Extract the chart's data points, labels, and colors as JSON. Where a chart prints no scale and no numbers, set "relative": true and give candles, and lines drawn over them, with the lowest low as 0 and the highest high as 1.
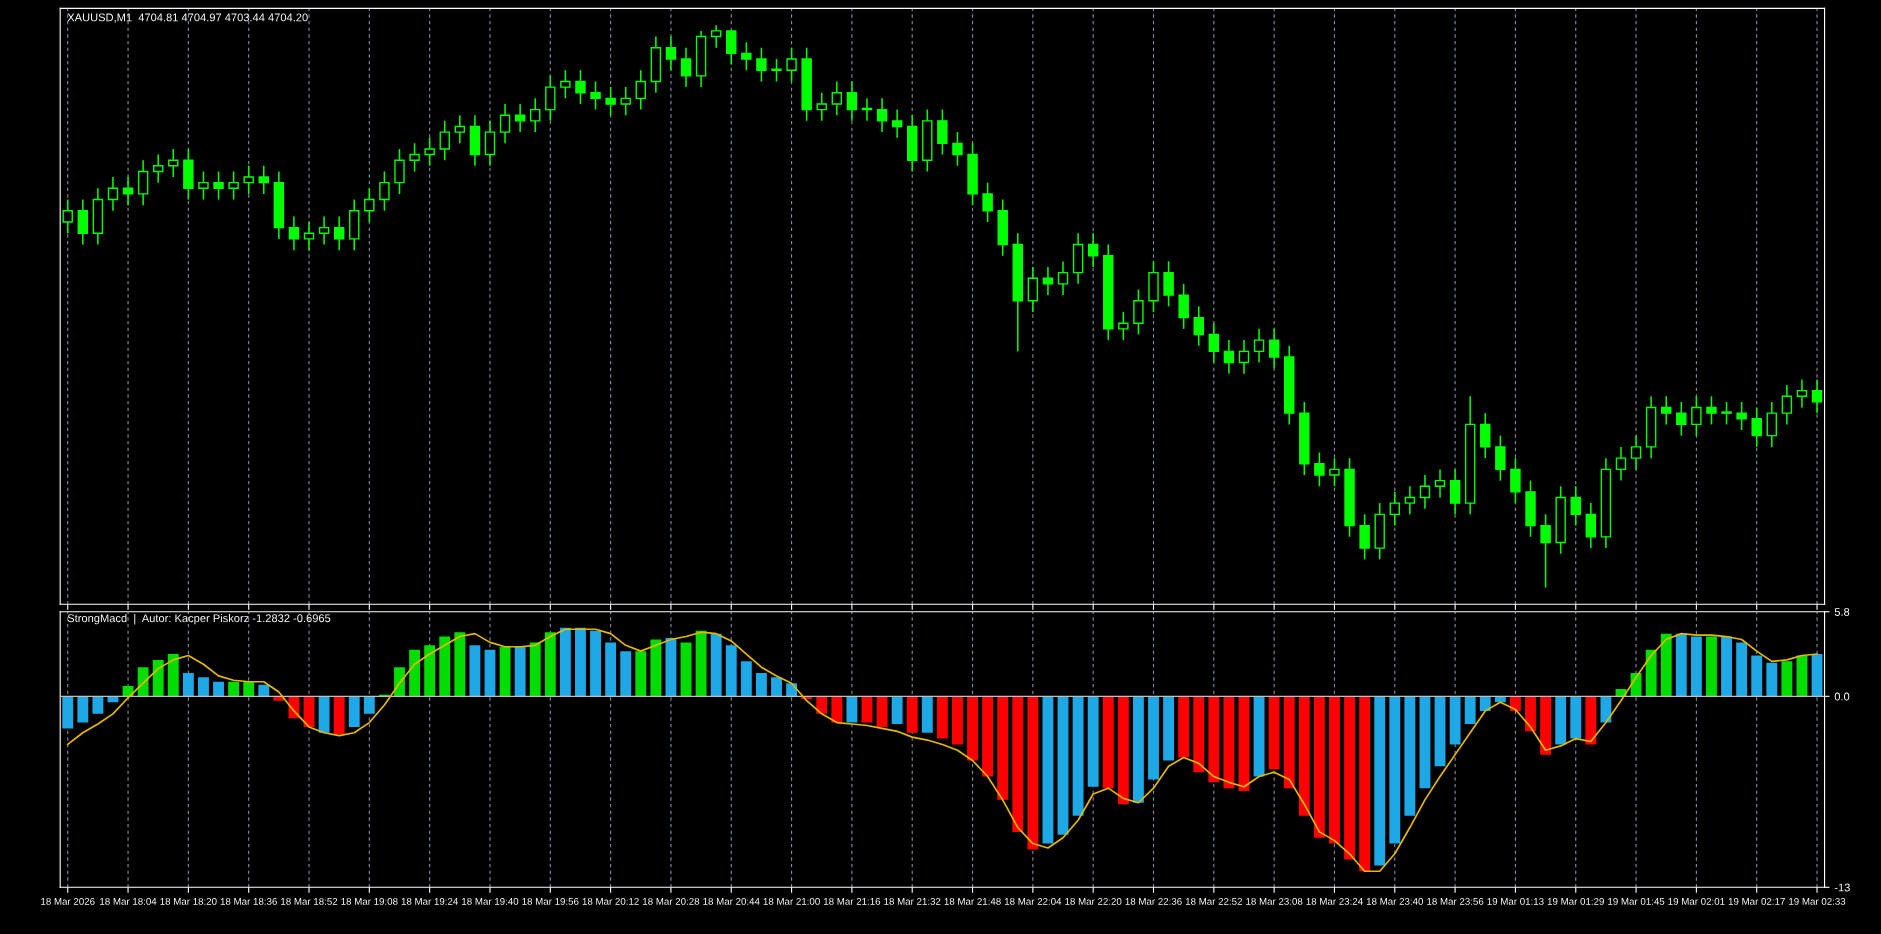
{
  "chart_data": [
    {
      "type": "candlestick",
      "title": "XAUUSD,M1  4704.81 4704.97 4703.44 4704.20",
      "relative": true,
      "color": "#00ff00",
      "grid": "x",
      "tick_labels": false,
      "ohlc": [
        [
          0.65,
          0.69,
          0.63,
          0.67
        ],
        [
          0.67,
          0.69,
          0.61,
          0.63
        ],
        [
          0.63,
          0.71,
          0.61,
          0.69
        ],
        [
          0.69,
          0.73,
          0.67,
          0.71
        ],
        [
          0.71,
          0.73,
          0.68,
          0.7
        ],
        [
          0.7,
          0.76,
          0.68,
          0.74
        ],
        [
          0.74,
          0.77,
          0.72,
          0.75
        ],
        [
          0.75,
          0.78,
          0.73,
          0.76
        ],
        [
          0.76,
          0.78,
          0.69,
          0.71
        ],
        [
          0.71,
          0.74,
          0.69,
          0.72
        ],
        [
          0.72,
          0.74,
          0.69,
          0.71
        ],
        [
          0.71,
          0.74,
          0.69,
          0.72
        ],
        [
          0.72,
          0.75,
          0.7,
          0.73
        ],
        [
          0.73,
          0.75,
          0.7,
          0.72
        ],
        [
          0.72,
          0.74,
          0.62,
          0.64
        ],
        [
          0.64,
          0.66,
          0.6,
          0.62
        ],
        [
          0.62,
          0.65,
          0.6,
          0.63
        ],
        [
          0.63,
          0.66,
          0.61,
          0.64
        ],
        [
          0.64,
          0.66,
          0.6,
          0.62
        ],
        [
          0.62,
          0.69,
          0.6,
          0.67
        ],
        [
          0.67,
          0.71,
          0.65,
          0.69
        ],
        [
          0.69,
          0.74,
          0.67,
          0.72
        ],
        [
          0.72,
          0.78,
          0.7,
          0.76
        ],
        [
          0.76,
          0.79,
          0.74,
          0.77
        ],
        [
          0.77,
          0.8,
          0.75,
          0.78
        ],
        [
          0.78,
          0.83,
          0.76,
          0.81
        ],
        [
          0.81,
          0.84,
          0.79,
          0.82
        ],
        [
          0.82,
          0.84,
          0.75,
          0.77
        ],
        [
          0.77,
          0.83,
          0.75,
          0.81
        ],
        [
          0.81,
          0.86,
          0.79,
          0.84
        ],
        [
          0.84,
          0.86,
          0.81,
          0.83
        ],
        [
          0.83,
          0.87,
          0.81,
          0.85
        ],
        [
          0.85,
          0.91,
          0.83,
          0.89
        ],
        [
          0.89,
          0.92,
          0.87,
          0.9
        ],
        [
          0.9,
          0.92,
          0.86,
          0.88
        ],
        [
          0.88,
          0.9,
          0.85,
          0.87
        ],
        [
          0.87,
          0.89,
          0.84,
          0.86
        ],
        [
          0.86,
          0.89,
          0.84,
          0.87
        ],
        [
          0.87,
          0.92,
          0.85,
          0.9
        ],
        [
          0.9,
          0.98,
          0.88,
          0.96
        ],
        [
          0.96,
          0.98,
          0.92,
          0.94
        ],
        [
          0.94,
          0.96,
          0.89,
          0.91
        ],
        [
          0.91,
          0.99,
          0.89,
          0.98
        ],
        [
          0.98,
          1.0,
          0.96,
          0.99
        ],
        [
          0.99,
          0.99,
          0.93,
          0.95
        ],
        [
          0.95,
          0.97,
          0.92,
          0.94
        ],
        [
          0.94,
          0.96,
          0.9,
          0.92
        ],
        [
          0.92,
          0.94,
          0.9,
          0.92
        ],
        [
          0.92,
          0.96,
          0.9,
          0.94
        ],
        [
          0.94,
          0.96,
          0.83,
          0.85
        ],
        [
          0.85,
          0.88,
          0.83,
          0.86
        ],
        [
          0.86,
          0.9,
          0.84,
          0.88
        ],
        [
          0.88,
          0.9,
          0.83,
          0.85
        ],
        [
          0.85,
          0.87,
          0.83,
          0.85
        ],
        [
          0.85,
          0.87,
          0.81,
          0.83
        ],
        [
          0.83,
          0.85,
          0.8,
          0.82
        ],
        [
          0.82,
          0.84,
          0.74,
          0.76
        ],
        [
          0.76,
          0.85,
          0.74,
          0.83
        ],
        [
          0.83,
          0.85,
          0.77,
          0.79
        ],
        [
          0.79,
          0.81,
          0.75,
          0.77
        ],
        [
          0.77,
          0.79,
          0.68,
          0.7
        ],
        [
          0.7,
          0.72,
          0.65,
          0.67
        ],
        [
          0.67,
          0.69,
          0.59,
          0.61
        ],
        [
          0.61,
          0.63,
          0.42,
          0.51
        ],
        [
          0.51,
          0.57,
          0.49,
          0.55
        ],
        [
          0.55,
          0.57,
          0.52,
          0.54
        ],
        [
          0.54,
          0.58,
          0.52,
          0.56
        ],
        [
          0.56,
          0.63,
          0.54,
          0.61
        ],
        [
          0.61,
          0.63,
          0.57,
          0.59
        ],
        [
          0.59,
          0.61,
          0.44,
          0.46
        ],
        [
          0.46,
          0.49,
          0.44,
          0.47
        ],
        [
          0.47,
          0.53,
          0.45,
          0.51
        ],
        [
          0.51,
          0.58,
          0.49,
          0.56
        ],
        [
          0.56,
          0.58,
          0.5,
          0.52
        ],
        [
          0.52,
          0.54,
          0.46,
          0.48
        ],
        [
          0.48,
          0.5,
          0.43,
          0.45
        ],
        [
          0.45,
          0.47,
          0.4,
          0.42
        ],
        [
          0.42,
          0.44,
          0.38,
          0.4
        ],
        [
          0.4,
          0.44,
          0.38,
          0.42
        ],
        [
          0.42,
          0.46,
          0.4,
          0.44
        ],
        [
          0.44,
          0.46,
          0.39,
          0.41
        ],
        [
          0.41,
          0.43,
          0.29,
          0.31
        ],
        [
          0.31,
          0.33,
          0.2,
          0.22
        ],
        [
          0.22,
          0.24,
          0.18,
          0.2
        ],
        [
          0.2,
          0.23,
          0.18,
          0.21
        ],
        [
          0.21,
          0.23,
          0.09,
          0.11
        ],
        [
          0.11,
          0.13,
          0.05,
          0.07
        ],
        [
          0.07,
          0.15,
          0.05,
          0.13
        ],
        [
          0.13,
          0.17,
          0.11,
          0.15
        ],
        [
          0.15,
          0.18,
          0.13,
          0.16
        ],
        [
          0.16,
          0.2,
          0.14,
          0.18
        ],
        [
          0.18,
          0.21,
          0.16,
          0.19
        ],
        [
          0.19,
          0.21,
          0.13,
          0.15
        ],
        [
          0.15,
          0.34,
          0.13,
          0.29
        ],
        [
          0.29,
          0.31,
          0.23,
          0.25
        ],
        [
          0.25,
          0.27,
          0.19,
          0.21
        ],
        [
          0.21,
          0.23,
          0.15,
          0.17
        ],
        [
          0.17,
          0.19,
          0.09,
          0.11
        ],
        [
          0.11,
          0.13,
          0.0,
          0.08
        ],
        [
          0.08,
          0.18,
          0.06,
          0.16
        ],
        [
          0.16,
          0.18,
          0.11,
          0.13
        ],
        [
          0.13,
          0.15,
          0.07,
          0.09
        ],
        [
          0.09,
          0.23,
          0.07,
          0.21
        ],
        [
          0.21,
          0.25,
          0.19,
          0.23
        ],
        [
          0.23,
          0.27,
          0.21,
          0.25
        ],
        [
          0.25,
          0.34,
          0.23,
          0.32
        ],
        [
          0.32,
          0.34,
          0.29,
          0.31
        ],
        [
          0.31,
          0.33,
          0.27,
          0.29
        ],
        [
          0.29,
          0.34,
          0.27,
          0.32
        ],
        [
          0.32,
          0.34,
          0.29,
          0.31
        ],
        [
          0.31,
          0.33,
          0.29,
          0.31
        ],
        [
          0.31,
          0.33,
          0.28,
          0.3
        ],
        [
          0.3,
          0.32,
          0.25,
          0.27
        ],
        [
          0.27,
          0.33,
          0.25,
          0.31
        ],
        [
          0.31,
          0.36,
          0.29,
          0.34
        ],
        [
          0.34,
          0.37,
          0.32,
          0.35
        ],
        [
          0.35,
          0.37,
          0.31,
          0.33
        ]
      ]
    },
    {
      "type": "bar",
      "title": "StrongMacd  |  Autor: Kacper Piskorz -1.2832 -0.6965",
      "grid": "x",
      "categories": [
        "18 Mar 2026",
        null,
        null,
        null,
        "18 Mar 18:04",
        null,
        null,
        null,
        "18 Mar 18:20",
        null,
        null,
        null,
        "18 Mar 18:36",
        null,
        null,
        null,
        "18 Mar 18:52",
        null,
        null,
        null,
        "18 Mar 19:08",
        null,
        null,
        null,
        "18 Mar 19:24",
        null,
        null,
        null,
        "18 Mar 19:40",
        null,
        null,
        null,
        "18 Mar 19:56",
        null,
        null,
        null,
        "18 Mar 20:12",
        null,
        null,
        null,
        "18 Mar 20:28",
        null,
        null,
        null,
        "18 Mar 20:44",
        null,
        null,
        null,
        "18 Mar 21:00",
        null,
        null,
        null,
        "18 Mar 21:16",
        null,
        null,
        null,
        "18 Mar 21:32",
        null,
        null,
        null,
        "18 Mar 21:48",
        null,
        null,
        null,
        "18 Mar 22:04",
        null,
        null,
        null,
        "18 Mar 22:20",
        null,
        null,
        null,
        "18 Mar 22:36",
        null,
        null,
        null,
        "18 Mar 22:52",
        null,
        null,
        null,
        "18 Mar 23:08",
        null,
        null,
        null,
        "18 Mar 23:24",
        null,
        null,
        null,
        "18 Mar 23:40",
        null,
        null,
        null,
        "18 Mar 23:56",
        null,
        null,
        null,
        "19 Mar 01:13",
        null,
        null,
        null,
        "19 Mar 01:29",
        null,
        null,
        null,
        "19 Mar 01:45",
        null,
        null,
        null,
        "19 Mar 02:01",
        null,
        null,
        null,
        "19 Mar 02:17",
        null,
        null,
        null,
        "19 Mar 02:33"
      ],
      "ylim": [
        -13.1,
        5.8
      ],
      "yticks": [
        5.8,
        {
          "value": 0,
          "label": "0.0"
        },
        {
          "value": -13.1,
          "label": "-13"
        }
      ],
      "ref_lines": [
        {
          "axis": "y",
          "value": 0,
          "color": "#c0c0c0"
        }
      ],
      "series": [
        {
          "type": "bar",
          "values": [
            -2.2,
            -1.8,
            -1.2,
            -0.4,
            0.7,
            2.0,
            2.5,
            2.9,
            1.6,
            1.3,
            1.0,
            1.0,
            1.0,
            0.8,
            -0.3,
            -1.5,
            -2.1,
            -2.5,
            -2.6,
            -2.1,
            -1.2,
            0.1,
            2.0,
            3.2,
            3.5,
            4.1,
            4.4,
            3.5,
            3.2,
            3.4,
            3.4,
            3.7,
            4.4,
            4.7,
            4.7,
            4.5,
            3.7,
            3.1,
            3.1,
            3.9,
            4.0,
            3.7,
            4.5,
            4.3,
            3.5,
            2.4,
            1.6,
            1.3,
            0.9,
            -0.2,
            -1.2,
            -1.8,
            -1.8,
            -1.8,
            -2.1,
            -1.9,
            -2.5,
            -2.5,
            -2.9,
            -3.3,
            -4.4,
            -5.5,
            -7.1,
            -9.3,
            -10.5,
            -10.1,
            -9.5,
            -8.2,
            -6.2,
            -6.3,
            -7.4,
            -7.3,
            -5.7,
            -4.4,
            -4.2,
            -5.2,
            -5.9,
            -6.3,
            -6.5,
            -5.5,
            -5.0,
            -6.3,
            -8.2,
            -9.7,
            -10.1,
            -11.2,
            -12.0,
            -11.6,
            -10.1,
            -8.2,
            -6.3,
            -4.8,
            -3.3,
            -1.9,
            -1.0,
            -0.4,
            -1.0,
            -2.4,
            -4.0,
            -3.3,
            -2.9,
            -3.3,
            -1.8,
            0.5,
            1.6,
            3.2,
            4.3,
            4.3,
            4.1,
            4.1,
            4.1,
            3.7,
            2.8,
            2.3,
            2.4,
            2.8,
            2.9
          ],
          "colors": [
            "#1ea8e6",
            "#1ea8e6",
            "#1ea8e6",
            "#1ea8e6",
            "#00dd00",
            "#00dd00",
            "#00dd00",
            "#00dd00",
            "#1ea8e6",
            "#1ea8e6",
            "#1ea8e6",
            "#00dd00",
            "#00dd00",
            "#1ea8e6",
            "#ff0000",
            "#ff0000",
            "#ff0000",
            "#1ea8e6",
            "#ff0000",
            "#1ea8e6",
            "#1ea8e6",
            "#00dd00",
            "#00dd00",
            "#00dd00",
            "#00dd00",
            "#00dd00",
            "#00dd00",
            "#1ea8e6",
            "#1ea8e6",
            "#00dd00",
            "#1ea8e6",
            "#00dd00",
            "#00dd00",
            "#1ea8e6",
            "#1ea8e6",
            "#1ea8e6",
            "#1ea8e6",
            "#1ea8e6",
            "#00dd00",
            "#00dd00",
            "#1ea8e6",
            "#00dd00",
            "#00dd00",
            "#1ea8e6",
            "#1ea8e6",
            "#1ea8e6",
            "#1ea8e6",
            "#1ea8e6",
            "#1ea8e6",
            "#ff0000",
            "#ff0000",
            "#ff0000",
            "#1ea8e6",
            "#ff0000",
            "#ff0000",
            "#1ea8e6",
            "#ff0000",
            "#1ea8e6",
            "#ff0000",
            "#ff0000",
            "#ff0000",
            "#ff0000",
            "#ff0000",
            "#ff0000",
            "#ff0000",
            "#1ea8e6",
            "#1ea8e6",
            "#1ea8e6",
            "#1ea8e6",
            "#ff0000",
            "#ff0000",
            "#1ea8e6",
            "#1ea8e6",
            "#1ea8e6",
            "#ff0000",
            "#ff0000",
            "#ff0000",
            "#ff0000",
            "#ff0000",
            "#1ea8e6",
            "#ff0000",
            "#ff0000",
            "#ff0000",
            "#ff0000",
            "#ff0000",
            "#ff0000",
            "#ff0000",
            "#1ea8e6",
            "#1ea8e6",
            "#1ea8e6",
            "#1ea8e6",
            "#1ea8e6",
            "#1ea8e6",
            "#1ea8e6",
            "#1ea8e6",
            "#1ea8e6",
            "#ff0000",
            "#ff0000",
            "#ff0000",
            "#1ea8e6",
            "#1ea8e6",
            "#ff0000",
            "#1ea8e6",
            "#00dd00",
            "#00dd00",
            "#00dd00",
            "#00dd00",
            "#1ea8e6",
            "#1ea8e6",
            "#00dd00",
            "#1ea8e6",
            "#1ea8e6",
            "#1ea8e6",
            "#1ea8e6",
            "#00dd00",
            "#00dd00",
            "#1ea8e6"
          ]
        },
        {
          "type": "line",
          "color": "#e6b800",
          "values": [
            -3.3,
            -2.5,
            -1.9,
            -1.2,
            -0.1,
            0.9,
            1.9,
            2.5,
            2.8,
            2.2,
            1.4,
            1.1,
            1.0,
            1.0,
            0.3,
            -1.0,
            -2.1,
            -2.5,
            -2.7,
            -2.5,
            -1.8,
            -0.6,
            0.9,
            2.2,
            2.9,
            3.5,
            4.1,
            4.3,
            3.7,
            3.4,
            3.4,
            3.5,
            4.1,
            4.6,
            4.6,
            4.6,
            4.3,
            3.5,
            3.1,
            3.5,
            3.9,
            4.1,
            4.4,
            4.3,
            3.8,
            2.9,
            2.0,
            1.4,
            0.9,
            -0.3,
            -1.2,
            -1.8,
            -1.9,
            -2.0,
            -2.2,
            -2.4,
            -2.8,
            -3.0,
            -3.3,
            -3.7,
            -4.4,
            -5.5,
            -7.1,
            -9.0,
            -10.1,
            -10.4,
            -9.7,
            -8.5,
            -6.7,
            -6.3,
            -7.0,
            -7.3,
            -6.3,
            -4.8,
            -4.2,
            -4.6,
            -5.5,
            -5.9,
            -6.2,
            -5.5,
            -5.2,
            -5.7,
            -7.4,
            -9.3,
            -9.9,
            -10.8,
            -12.0,
            -12.0,
            -10.8,
            -9.0,
            -7.1,
            -5.5,
            -4.0,
            -2.5,
            -1.0,
            -0.4,
            -0.9,
            -2.1,
            -3.7,
            -3.4,
            -2.9,
            -3.1,
            -1.8,
            -0.3,
            1.3,
            2.8,
            3.9,
            4.3,
            4.2,
            4.2,
            4.1,
            3.9,
            3.1,
            2.4,
            2.5,
            2.8,
            2.9
          ]
        }
      ]
    }
  ]
}
